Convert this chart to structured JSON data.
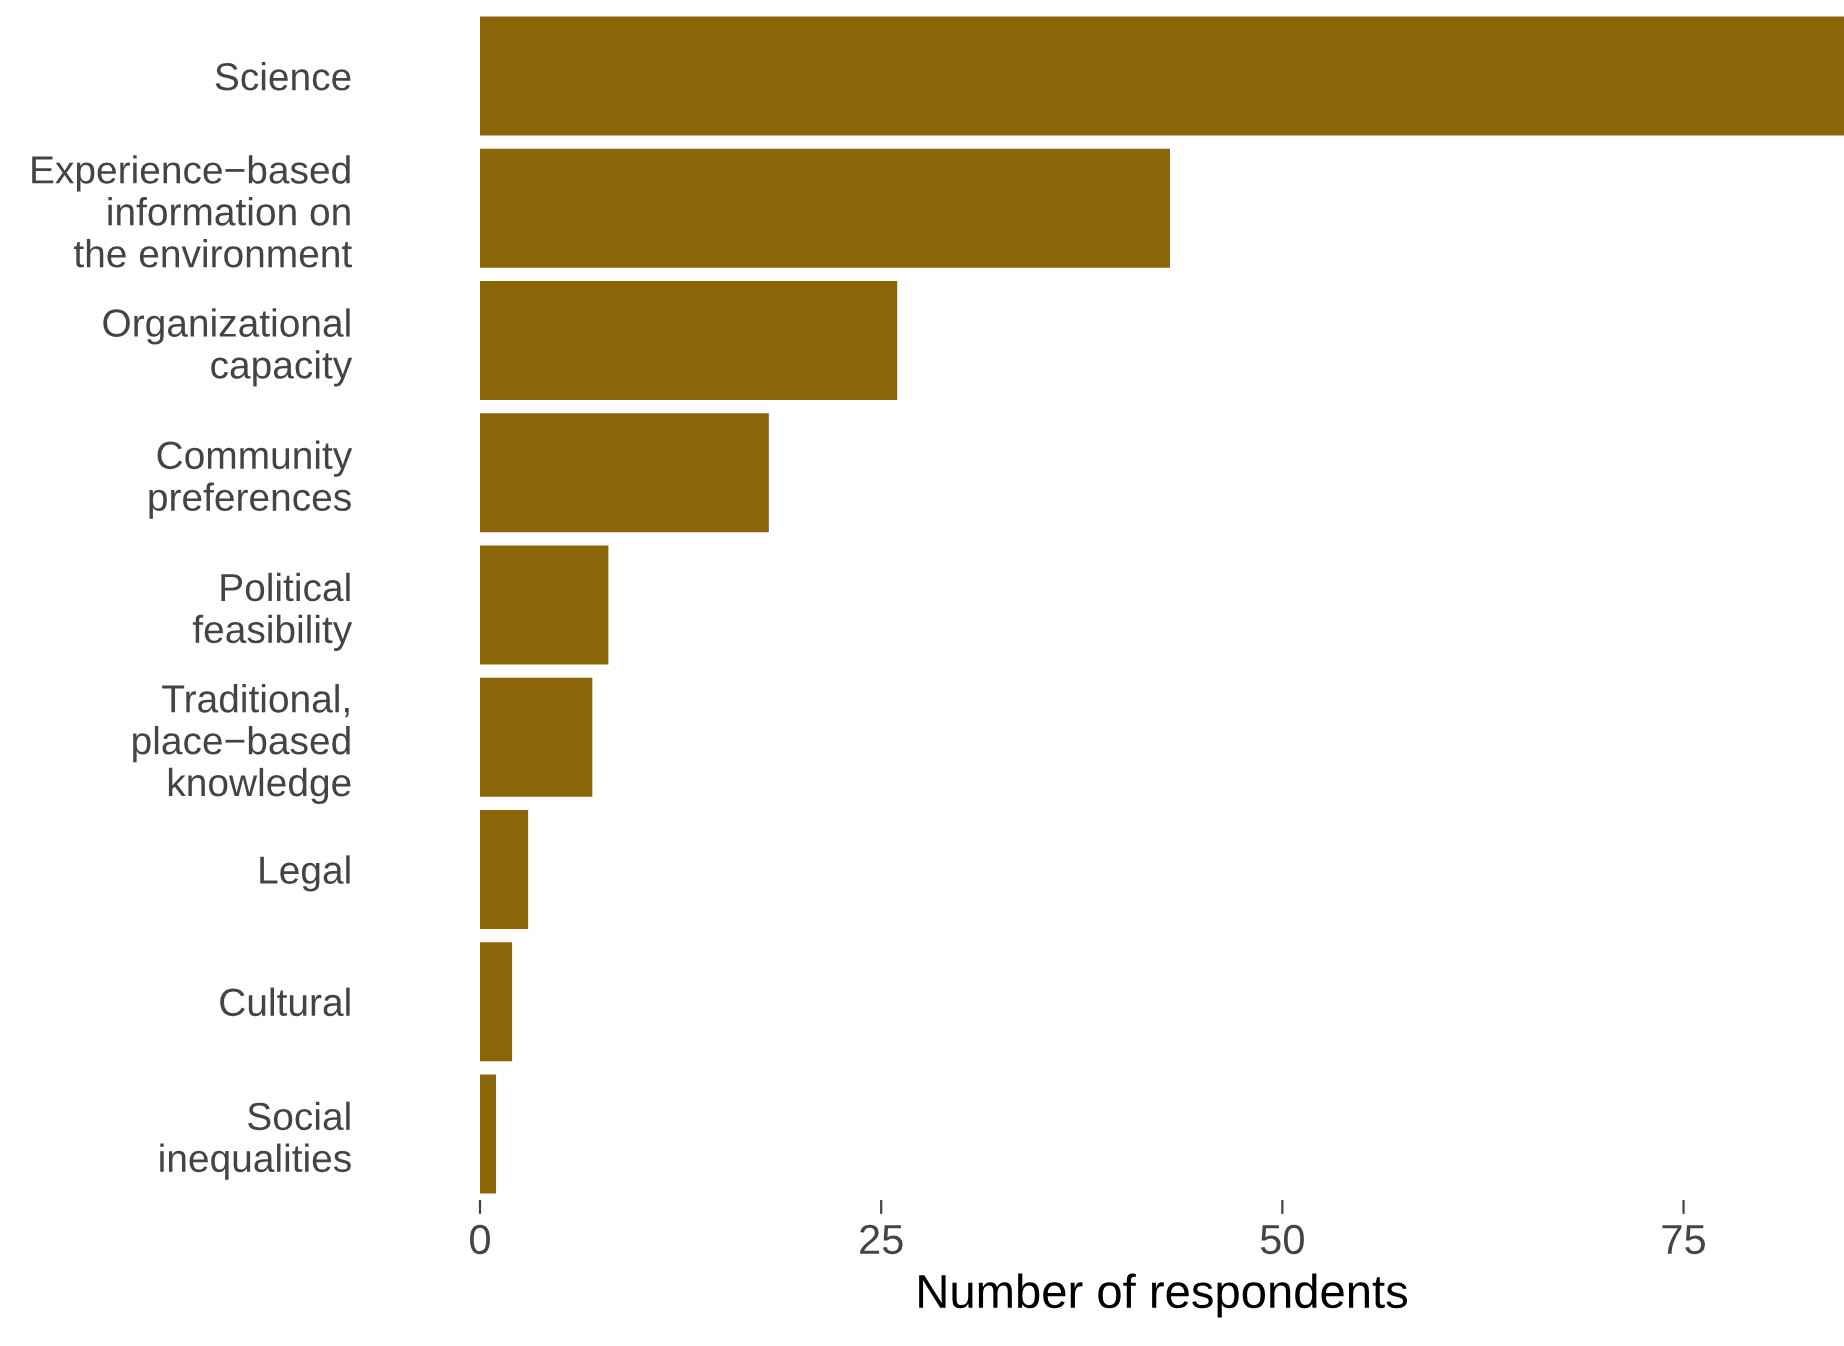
{
  "chart_data": {
    "type": "bar",
    "orientation": "horizontal",
    "xlabel": "Number of respondents",
    "categories": [
      "Science",
      "Experience−based\ninformation on\nthe environment",
      "Organizational\ncapacity",
      "Community\npreferences",
      "Political\nfeasibility",
      "Traditional,\nplace−based\nknowledge",
      "Legal",
      "Cultural",
      "Social\ninequalities"
    ],
    "values": [
      85,
      43,
      26,
      18,
      8,
      7,
      3,
      2,
      1
    ],
    "color": "#8b6508",
    "xlim": [
      0,
      85
    ],
    "xticks": [
      0,
      25,
      50,
      75
    ],
    "grid": false,
    "legend": false
  }
}
